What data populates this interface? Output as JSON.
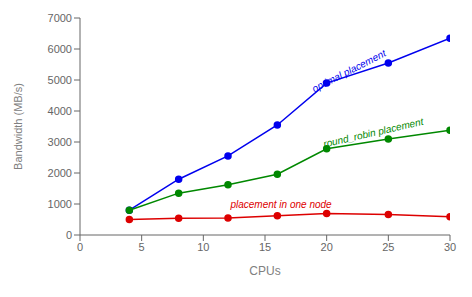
{
  "chart_data": {
    "type": "line",
    "x": [
      4,
      8,
      12,
      16,
      20,
      25,
      30
    ],
    "series": [
      {
        "color": "#0000ee",
        "values": [
          800,
          1800,
          2550,
          3550,
          4900,
          5550,
          6350
        ],
        "marker": "circle"
      },
      {
        "color": "#008800",
        "values": [
          800,
          1350,
          1620,
          1960,
          2780,
          3100,
          3380
        ],
        "marker": "circle"
      },
      {
        "color": "#dd0000",
        "values": [
          500,
          540,
          545,
          620,
          690,
          660,
          590
        ],
        "marker": "circle"
      }
    ],
    "annotations": [
      {
        "text": "optimal placement",
        "x": 19.0,
        "y": 4600,
        "color": "#0000ee"
      },
      {
        "text": "round_robin placement",
        "x": 19.8,
        "y": 2820,
        "color": "#008800"
      },
      {
        "text": "placement in one node",
        "x": 12.2,
        "y": 860,
        "color": "#dd0000"
      }
    ],
    "xlim": [
      0,
      30
    ],
    "ylim": [
      0,
      7000
    ],
    "xticks": [
      0,
      5,
      10,
      15,
      20,
      25,
      30
    ],
    "yticks": [
      0,
      1000,
      2000,
      3000,
      4000,
      5000,
      6000,
      7000
    ],
    "xlabel": "CPUs",
    "ylabel": "Bandwidth (MB/s)",
    "grid": false
  }
}
